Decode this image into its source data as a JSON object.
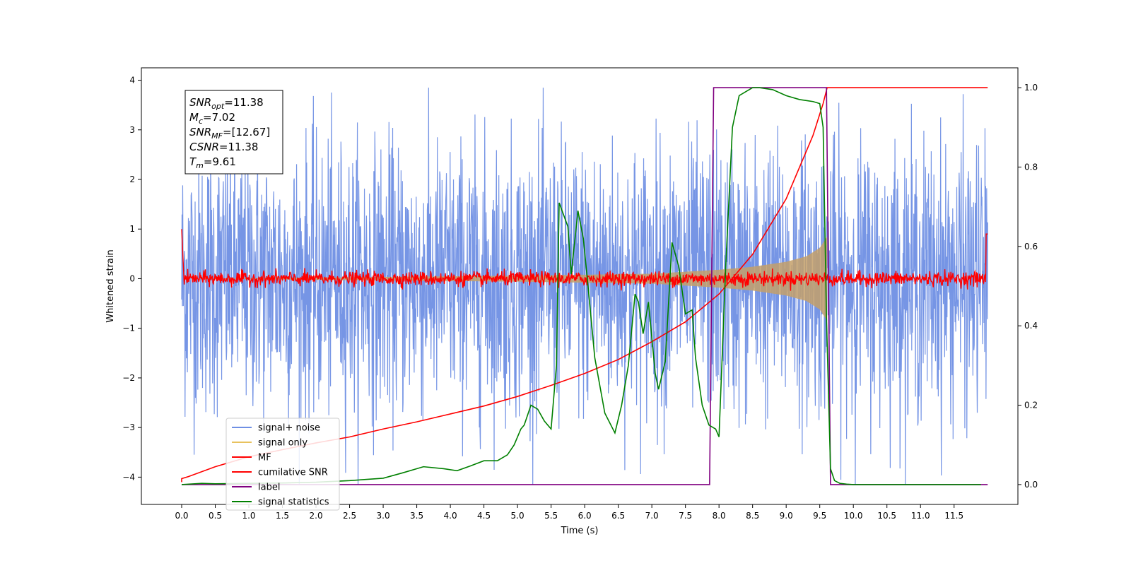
{
  "chart_data": {
    "type": "line",
    "xlabel": "Time (s)",
    "ylabel": "Whitened strain",
    "xlim": [
      -0.6,
      12.45
    ],
    "ylim": [
      -4.55,
      4.25
    ],
    "y2lim": [
      -0.05,
      1.05
    ],
    "x_ticks": [
      0.0,
      0.5,
      1.0,
      1.5,
      2.0,
      2.5,
      3.0,
      3.5,
      4.0,
      4.5,
      5.0,
      5.5,
      6.0,
      6.5,
      7.0,
      7.5,
      8.0,
      8.5,
      9.0,
      9.5,
      10.0,
      10.5,
      11.0,
      11.5
    ],
    "x_tick_labels": [
      "0.0",
      "0.5",
      "1.0",
      "1.5",
      "2.0",
      "2.5",
      "3.0",
      "3.5",
      "4.0",
      "4.5",
      "5.0",
      "5.5",
      "6.0",
      "6.5",
      "7.0",
      "7.5",
      "8.0",
      "8.5",
      "9.0",
      "9.5",
      "10.0",
      "10.5",
      "11.0",
      "11.5"
    ],
    "y_ticks": [
      4,
      3,
      2,
      1,
      0,
      -1,
      -2,
      -3,
      -4
    ],
    "y_tick_labels": [
      "4",
      "3",
      "2",
      "1",
      "0",
      "−1",
      "−2",
      "−3",
      "−4"
    ],
    "y2_ticks": [
      1.0,
      0.8,
      0.6,
      0.4,
      0.2,
      0.0
    ],
    "y2_tick_labels": [
      "1.0",
      "0.8",
      "0.6",
      "0.4",
      "0.2",
      "0.0"
    ],
    "grid": false,
    "legend_position": "lower-left",
    "annotation": {
      "lines": [
        {
          "sym": "SNR",
          "sub": "opt",
          "val": "=11.38"
        },
        {
          "sym": "M",
          "sub": "c",
          "val": "=7.02"
        },
        {
          "sym": "SNR",
          "sub": "MF",
          "val": "=[12.67]"
        },
        {
          "sym": "CSNR",
          "sub": "",
          "val": "=11.38"
        },
        {
          "sym": "T",
          "sub": "m",
          "val": "=9.61"
        }
      ]
    },
    "series": [
      {
        "name": "signal+ noise",
        "color": "#6f8fe4",
        "axis": "left",
        "kind": "noise",
        "x_range": [
          0.0,
          12.0
        ],
        "amplitude": 2.6,
        "peak": 3.85
      },
      {
        "name": "signal only",
        "color": "#e8c25e",
        "axis": "left",
        "kind": "chirp",
        "x_range": [
          0.0,
          9.61
        ],
        "envelope": [
          [
            0.0,
            0.0
          ],
          [
            5.0,
            0.06
          ],
          [
            7.0,
            0.1
          ],
          [
            8.0,
            0.18
          ],
          [
            8.5,
            0.24
          ],
          [
            9.0,
            0.34
          ],
          [
            9.3,
            0.45
          ],
          [
            9.5,
            0.62
          ],
          [
            9.61,
            0.85
          ]
        ]
      },
      {
        "name": "MF",
        "color": "#ff0000",
        "axis": "left",
        "kind": "mf",
        "x_range": [
          0.0,
          12.0
        ],
        "amplitude": 0.12
      },
      {
        "name": "cumilative SNR",
        "color": "#ff0000",
        "axis": "right",
        "x": [
          0.0,
          0.1,
          0.5,
          1.0,
          1.5,
          2.0,
          2.5,
          3.0,
          3.5,
          4.0,
          4.5,
          5.0,
          5.5,
          6.0,
          6.5,
          7.0,
          7.5,
          8.0,
          8.5,
          9.0,
          9.2,
          9.4,
          9.55,
          9.61,
          9.62,
          12.0
        ],
        "y": [
          0.015,
          0.02,
          0.045,
          0.07,
          0.088,
          0.105,
          0.12,
          0.14,
          0.158,
          0.178,
          0.198,
          0.222,
          0.25,
          0.28,
          0.315,
          0.36,
          0.41,
          0.48,
          0.58,
          0.72,
          0.8,
          0.88,
          0.96,
          1.0,
          1.0,
          1.0
        ]
      },
      {
        "name": "label",
        "color": "#800080",
        "axis": "right",
        "x": [
          0.0,
          7.86,
          7.92,
          9.6,
          9.66,
          12.0
        ],
        "y": [
          0.0,
          0.0,
          1.0,
          1.0,
          0.0,
          0.0
        ]
      },
      {
        "name": "signal statistics",
        "color": "#008000",
        "axis": "right",
        "x": [
          0.0,
          0.3,
          0.5,
          1.0,
          1.5,
          2.0,
          2.5,
          3.0,
          3.3,
          3.6,
          3.9,
          4.1,
          4.3,
          4.5,
          4.7,
          4.85,
          4.95,
          5.05,
          5.1,
          5.2,
          5.3,
          5.4,
          5.5,
          5.58,
          5.62,
          5.75,
          5.8,
          5.9,
          5.98,
          6.05,
          6.15,
          6.3,
          6.45,
          6.55,
          6.65,
          6.75,
          6.8,
          6.87,
          6.95,
          7.05,
          7.1,
          7.2,
          7.3,
          7.4,
          7.5,
          7.6,
          7.65,
          7.75,
          7.85,
          7.95,
          8.0,
          8.1,
          8.2,
          8.3,
          8.4,
          8.5,
          8.6,
          8.8,
          9.0,
          9.2,
          9.4,
          9.5,
          9.55,
          9.6,
          9.66,
          9.72,
          9.8,
          9.9,
          10.0,
          11.0,
          11.9
        ],
        "y": [
          0.0,
          0.003,
          0.002,
          0.003,
          0.004,
          0.006,
          0.01,
          0.016,
          0.03,
          0.045,
          0.04,
          0.035,
          0.047,
          0.06,
          0.06,
          0.075,
          0.1,
          0.14,
          0.15,
          0.2,
          0.19,
          0.16,
          0.14,
          0.3,
          0.71,
          0.65,
          0.53,
          0.69,
          0.62,
          0.5,
          0.32,
          0.18,
          0.13,
          0.2,
          0.3,
          0.48,
          0.46,
          0.38,
          0.46,
          0.28,
          0.24,
          0.31,
          0.61,
          0.55,
          0.43,
          0.44,
          0.32,
          0.2,
          0.15,
          0.14,
          0.12,
          0.55,
          0.9,
          0.98,
          0.99,
          1.0,
          1.0,
          0.995,
          0.98,
          0.97,
          0.965,
          0.96,
          0.9,
          0.42,
          0.04,
          0.01,
          0.003,
          0.001,
          0.0,
          0.0,
          0.0
        ]
      }
    ]
  }
}
